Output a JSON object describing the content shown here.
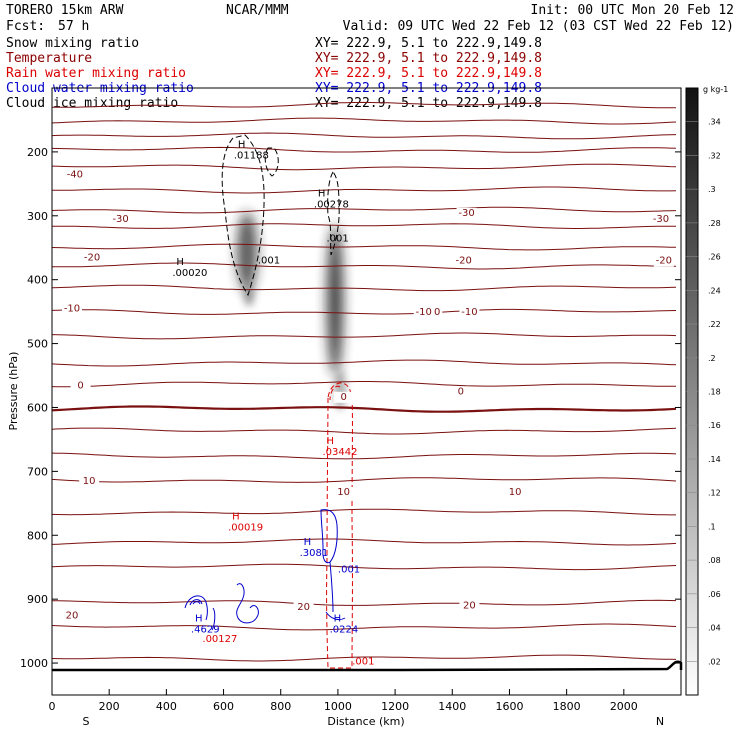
{
  "header": {
    "model": "TORERO   15km ARW",
    "center": "NCAR/MMM",
    "init": "Init: 00 UTC Mon 20 Feb 12",
    "fcst_label": "Fcst:",
    "fcst_value": "57 h",
    "valid": "Valid: 09 UTC Wed 22 Feb 12 (03 CST Wed 22 Feb 12)"
  },
  "fields": [
    {
      "name": "Snow mixing ratio",
      "xy": "XY= 222.9,  5.1 to 222.9,149.8",
      "color": "#000000"
    },
    {
      "name": "Temperature",
      "xy": "XY= 222.9,  5.1 to 222.9,149.8",
      "color": "#8b0000"
    },
    {
      "name": "Rain water mixing ratio",
      "xy": "XY= 222.9,  5.1 to 222.9,149.8",
      "color": "#dd0000"
    },
    {
      "name": "Cloud water mixing ratio",
      "xy": "XY= 222.9,  5.1 to 222.9,149.8",
      "color": "#0000cc"
    },
    {
      "name": "Cloud ice mixing ratio",
      "xy": "XY= 222.9,  5.1 to 222.9,149.8",
      "color": "#000000"
    }
  ],
  "chart_data": {
    "type": "contour",
    "xlabel": "Distance (km)",
    "ylabel": "Pressure (hPa)",
    "xlim": [
      0,
      2200
    ],
    "ylim": [
      1050,
      100
    ],
    "xticks": [
      "0",
      "200",
      "400",
      "600",
      "800",
      "1000",
      "1200",
      "1400",
      "1600",
      "1800",
      "2000"
    ],
    "yticks": [
      "200",
      "300",
      "400",
      "500",
      "600",
      "700",
      "800",
      "900",
      "1000"
    ],
    "x_endpoints": {
      "left": "S",
      "right": "N"
    },
    "colorbar": {
      "units": "g kg-1",
      "levels": [
        ".02",
        ".04",
        ".06",
        ".08",
        ".1",
        ".12",
        ".14",
        ".16",
        ".18",
        ".2",
        ".22",
        ".24",
        ".26",
        ".28",
        ".3",
        ".32",
        ".34"
      ]
    },
    "temperature_labels": [
      {
        "text": "-40",
        "x": 80,
        "p": 240
      },
      {
        "text": "-30",
        "x": 240,
        "p": 310
      },
      {
        "text": "-20",
        "x": 140,
        "p": 370
      },
      {
        "text": "-10",
        "x": 70,
        "p": 450
      },
      {
        "text": "0",
        "x": 100,
        "p": 570
      },
      {
        "text": "10",
        "x": 130,
        "p": 720
      },
      {
        "text": "20",
        "x": 70,
        "p": 930
      },
      {
        "text": "-30",
        "x": 1450,
        "p": 300
      },
      {
        "text": "-30",
        "x": 2130,
        "p": 310
      },
      {
        "text": "-20",
        "x": 1440,
        "p": 375
      },
      {
        "text": "-20",
        "x": 2140,
        "p": 375
      },
      {
        "text": "-10",
        "x": 1330,
        "p": 455
      },
      {
        "text": "-10",
        "x": 1460,
        "p": 455
      },
      {
        "text": "0",
        "x": 1020,
        "p": 588
      },
      {
        "text": "0",
        "x": 1430,
        "p": 580
      },
      {
        "text": "10",
        "x": 1020,
        "p": 737
      },
      {
        "text": "10",
        "x": 1620,
        "p": 737
      },
      {
        "text": "20",
        "x": 880,
        "p": 917
      },
      {
        "text": "20",
        "x": 1460,
        "p": 915
      },
      {
        "text": "-10",
        "x": 1300,
        "p": 455
      }
    ],
    "maxima": [
      {
        "letter": "H",
        "value": ".01188",
        "x": 650,
        "p": 193,
        "field": "snow"
      },
      {
        "letter": "H",
        "value": ".00278",
        "x": 930,
        "p": 270,
        "field": "snow"
      },
      {
        "letter": "H",
        "value": ".00020",
        "x": 435,
        "p": 377,
        "field": "snow"
      },
      {
        "letter": "H",
        "value": ".03442",
        "x": 960,
        "p": 657,
        "field": "rain"
      },
      {
        "letter": "H",
        "value": ".00019",
        "x": 630,
        "p": 775,
        "field": "rain"
      },
      {
        "letter": "H",
        "value": ".3081",
        "x": 880,
        "p": 815,
        "field": "cloudwater"
      },
      {
        "letter": "H",
        "value": ".0224",
        "x": 985,
        "p": 935,
        "field": "cloudwater"
      },
      {
        "letter": "H",
        "value": ".4629",
        "x": 500,
        "p": 935,
        "field": "cloudwater"
      },
      {
        "letter": "",
        "value": ".00127",
        "x": 540,
        "p": 950,
        "field": "rain"
      }
    ],
    "contour_labels": [
      {
        "text": ".001",
        "x": 720,
        "p": 375,
        "field": "snow"
      },
      {
        "text": ".001",
        "x": 960,
        "p": 340,
        "field": "snow"
      },
      {
        "text": ".001",
        "x": 1000,
        "p": 858,
        "field": "cloudwater"
      },
      {
        "text": ".001",
        "x": 1050,
        "p": 1002,
        "field": "rain"
      }
    ]
  }
}
